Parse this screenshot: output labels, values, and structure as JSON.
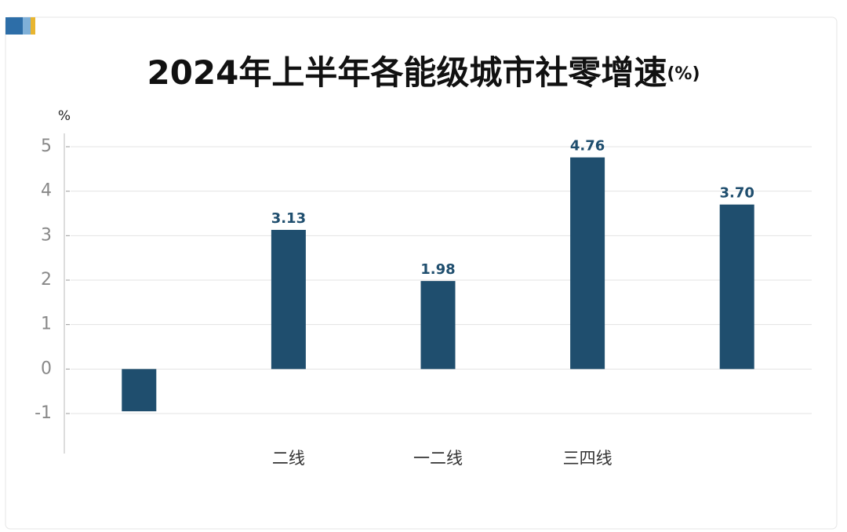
{
  "chart_data": {
    "type": "bar",
    "title": "2024年上半年各能级城市社零增速",
    "title_suffix": "(%)",
    "ylabel": "%",
    "categories": [
      null,
      "二线",
      "一二线",
      "三四线",
      null
    ],
    "values": [
      -0.95,
      3.13,
      1.98,
      4.76,
      3.7
    ],
    "value_labels": [
      null,
      "3.13",
      "1.98",
      "4.76",
      "3.70"
    ],
    "color": "#1f4e6e",
    "ylim": [
      -1.9,
      5.3
    ],
    "yticks": [
      -1,
      0,
      1,
      2,
      3,
      4,
      5
    ],
    "grid": true
  }
}
